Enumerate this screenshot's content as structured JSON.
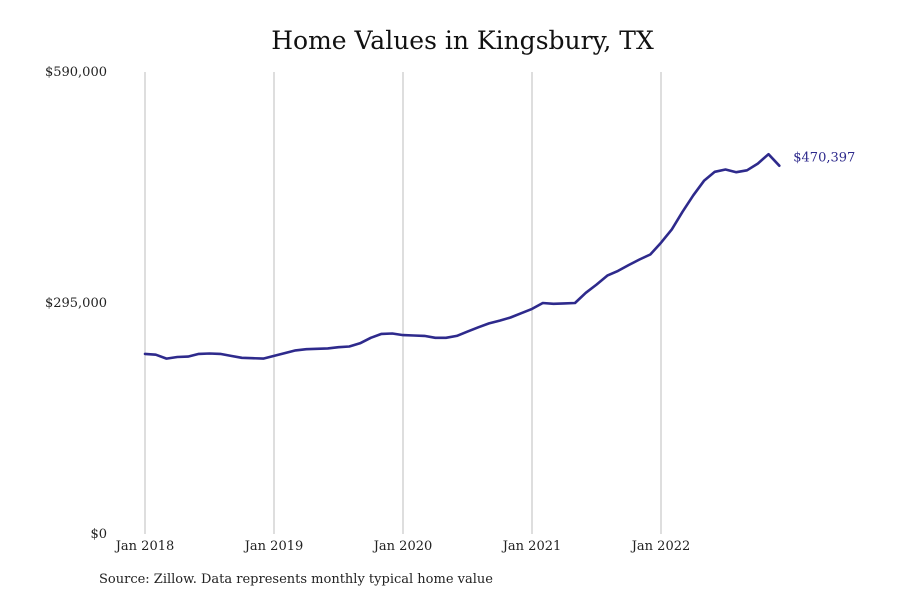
{
  "chart_data": {
    "type": "line",
    "title": "Home Values in Kingsbury, TX",
    "xlabel": "",
    "ylabel": "",
    "ylim": [
      0,
      590000
    ],
    "y_ticks": [
      0,
      295000,
      590000
    ],
    "y_tick_labels": [
      "$0",
      "$295,000",
      "$590,000"
    ],
    "x_ticks": [
      "2018-01",
      "2019-01",
      "2020-01",
      "2021-01",
      "2022-01"
    ],
    "x_tick_labels": [
      "Jan 2018",
      "Jan 2019",
      "Jan 2020",
      "Jan 2021",
      "Jan 2022"
    ],
    "grid": "vertical",
    "line_color": "#2e2a8c",
    "end_label": "$470,397",
    "series": [
      {
        "x": [
          "2018-01",
          "2018-02",
          "2018-03",
          "2018-04",
          "2018-05",
          "2018-06",
          "2018-07",
          "2018-08",
          "2018-09",
          "2018-10",
          "2018-11",
          "2018-12",
          "2019-01",
          "2019-02",
          "2019-03",
          "2019-04",
          "2019-05",
          "2019-06",
          "2019-07",
          "2019-08",
          "2019-09",
          "2019-10",
          "2019-11",
          "2019-12",
          "2020-01",
          "2020-02",
          "2020-03",
          "2020-04",
          "2020-05",
          "2020-06",
          "2020-07",
          "2020-08",
          "2020-09",
          "2020-10",
          "2020-11",
          "2020-12",
          "2021-01",
          "2021-02",
          "2021-03",
          "2021-04",
          "2021-05",
          "2021-06",
          "2021-07",
          "2021-08",
          "2021-09",
          "2021-10",
          "2021-11",
          "2021-12",
          "2022-01",
          "2022-02",
          "2022-03",
          "2022-04",
          "2022-05",
          "2022-06",
          "2022-07",
          "2022-08",
          "2022-09",
          "2022-10",
          "2022-11",
          "2022-12"
        ],
        "values": [
          230000,
          229000,
          224000,
          226000,
          226500,
          230000,
          230500,
          230000,
          227500,
          225000,
          224500,
          224000,
          227500,
          231000,
          234500,
          236000,
          236500,
          237000,
          238500,
          239500,
          243500,
          250500,
          255500,
          256000,
          254000,
          253500,
          253000,
          250500,
          250500,
          253000,
          258500,
          264000,
          269000,
          272500,
          276500,
          282000,
          287500,
          295000,
          294000,
          294500,
          295000,
          308000,
          318500,
          330000,
          336000,
          343500,
          350500,
          357000,
          372000,
          389000,
          411500,
          432500,
          451000,
          462500,
          465500,
          462000,
          464500,
          473000,
          485000,
          470397
        ]
      }
    ]
  },
  "source_note": "Source: Zillow. Data represents monthly typical home value"
}
